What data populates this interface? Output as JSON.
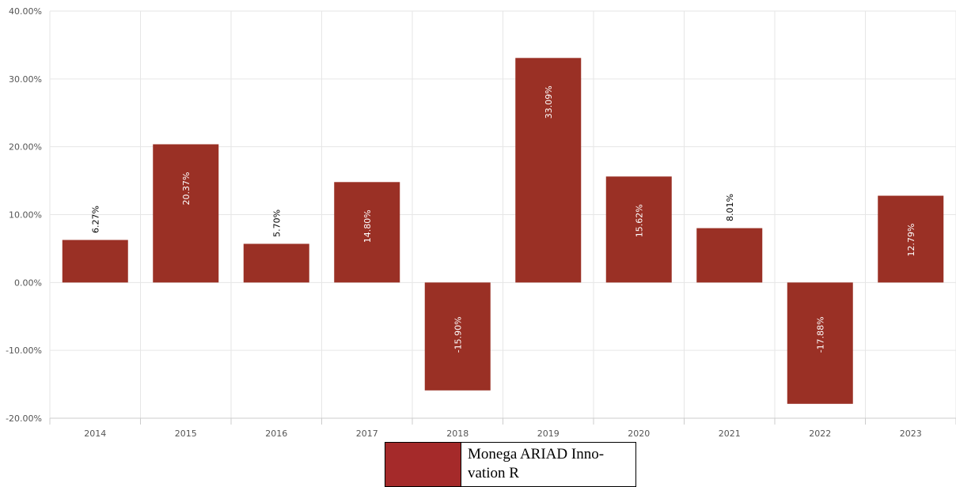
{
  "chart_data": {
    "type": "bar",
    "categories": [
      "2014",
      "2015",
      "2016",
      "2017",
      "2018",
      "2019",
      "2020",
      "2021",
      "2022",
      "2023"
    ],
    "series": [
      {
        "name": "Monega ARIAD Innovation R",
        "values": [
          6.27,
          20.37,
          5.7,
          14.8,
          -15.9,
          33.09,
          15.62,
          8.01,
          -17.88,
          12.79
        ]
      }
    ],
    "data_labels": [
      "6.27%",
      "20.37%",
      "5.70%",
      "14.80%",
      "-15.90%",
      "33.09%",
      "15.62%",
      "8.01%",
      "-17.88%",
      "12.79%"
    ],
    "yticks": [
      "40.00%",
      "30.00%",
      "20.00%",
      "10.00%",
      "0.00%",
      "-10.00%",
      "-20.00%"
    ],
    "ylim": [
      -20,
      40
    ],
    "grid": true,
    "legend_position": "bottom-center",
    "colors": {
      "bar": "#9a3025",
      "legend_swatch": "#a52a2a",
      "grid": "#e6e6e6"
    }
  },
  "legend": {
    "label": "Monega ARIAD Inno-\nvation R"
  }
}
